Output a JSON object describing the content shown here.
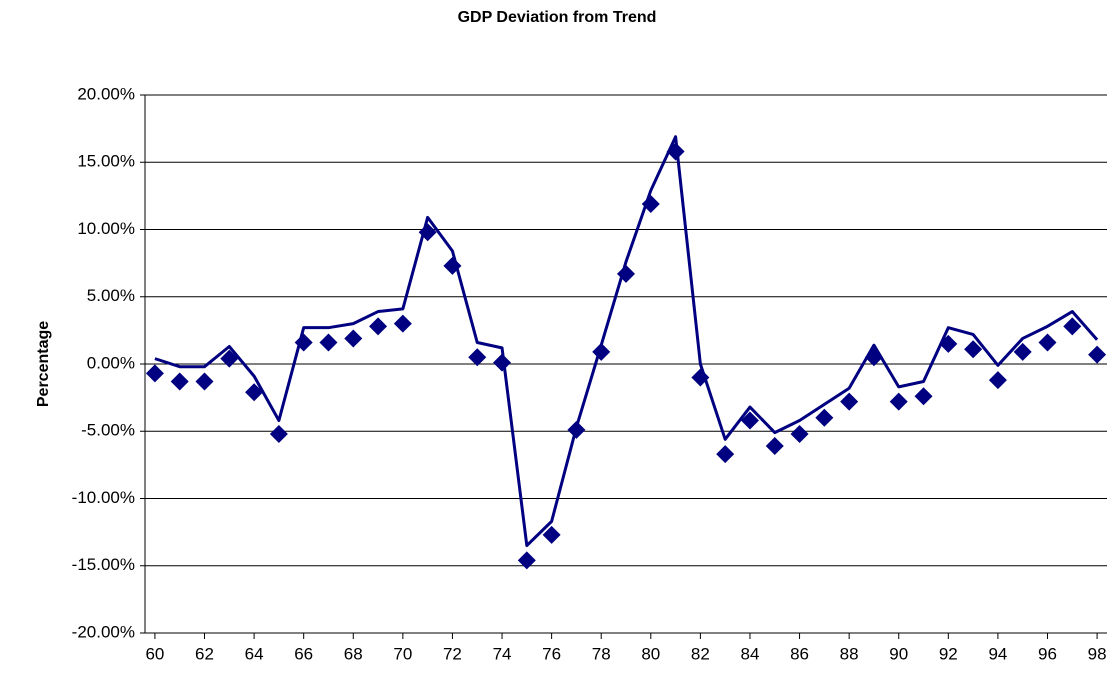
{
  "chart_data": {
    "type": "line",
    "title": "GDP Deviation from Trend",
    "y_label": "Percentage",
    "x": [
      60,
      61,
      62,
      63,
      64,
      65,
      66,
      67,
      68,
      69,
      70,
      71,
      72,
      73,
      74,
      75,
      76,
      77,
      78,
      79,
      80,
      81,
      82,
      83,
      84,
      85,
      86,
      87,
      88,
      89,
      90,
      91,
      92,
      93,
      94,
      95,
      96,
      97,
      98
    ],
    "xlim": [
      59.6,
      98.4
    ],
    "xticks": [
      60,
      62,
      64,
      66,
      68,
      70,
      72,
      74,
      76,
      78,
      80,
      82,
      84,
      86,
      88,
      90,
      92,
      94,
      96,
      98
    ],
    "ylim": [
      -20,
      20
    ],
    "yticks": [
      {
        "value": -20,
        "label": "-20.00%"
      },
      {
        "value": -15,
        "label": "-15.00%"
      },
      {
        "value": -10,
        "label": "-10.00%"
      },
      {
        "value": -5,
        "label": "-5.00%"
      },
      {
        "value": 0,
        "label": "0.00%"
      },
      {
        "value": 5,
        "label": "5.00%"
      },
      {
        "value": 10,
        "label": "10.00%"
      },
      {
        "value": 15,
        "label": "15.00%"
      },
      {
        "value": 20,
        "label": "20.00%"
      }
    ],
    "grid": true,
    "series": [
      {
        "color": "#000080",
        "style": "line",
        "values": [
          0.4,
          -0.2,
          -0.2,
          1.3,
          -0.9,
          -4.2,
          2.7,
          2.7,
          3.0,
          3.9,
          4.1,
          10.9,
          8.4,
          1.6,
          1.2,
          -13.5,
          -11.7,
          -4.7,
          1.4,
          7.6,
          12.9,
          16.9,
          0.0,
          -5.6,
          -3.2,
          -5.1,
          -4.2,
          -3.0,
          -1.8,
          1.4,
          -1.7,
          -1.3,
          2.7,
          2.2,
          -0.1,
          1.9,
          2.8,
          3.9,
          1.8
        ]
      },
      {
        "color": "#000080",
        "style": "markers",
        "values": [
          -0.7,
          -1.3,
          -1.3,
          0.4,
          -2.1,
          -5.2,
          1.6,
          1.6,
          1.9,
          2.8,
          3.0,
          9.8,
          7.3,
          0.5,
          0.1,
          -14.6,
          -12.7,
          -4.9,
          0.9,
          6.7,
          11.9,
          15.8,
          -1.0,
          -6.7,
          -4.2,
          -6.1,
          -5.2,
          -4.0,
          -2.8,
          0.5,
          -2.8,
          -2.4,
          1.5,
          1.1,
          -1.2,
          0.9,
          1.6,
          2.8,
          0.7
        ]
      }
    ]
  }
}
